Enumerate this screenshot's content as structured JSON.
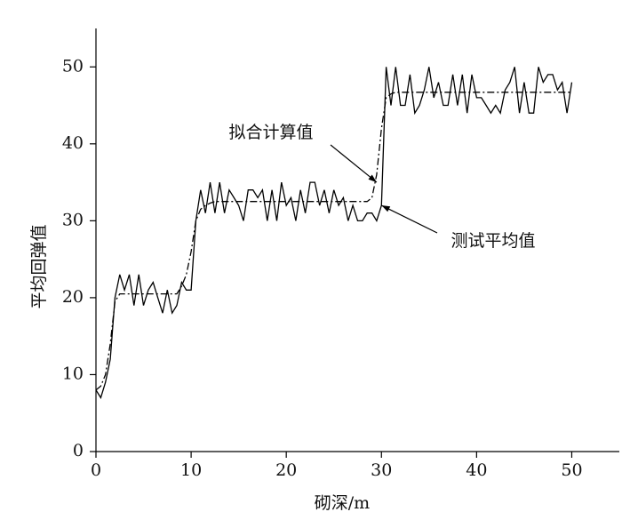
{
  "chart_data": {
    "type": "line",
    "xlabel": "砌深/m",
    "ylabel": "平均回弹值",
    "x": [
      0,
      0.5,
      1,
      1.5,
      2,
      2.5,
      3,
      3.5,
      4,
      4.5,
      5,
      5.5,
      6,
      6.5,
      7,
      7.5,
      8,
      8.5,
      9,
      9.5,
      10,
      10.5,
      11,
      11.5,
      12,
      12.5,
      13,
      13.5,
      14,
      14.5,
      15,
      15.5,
      16,
      16.5,
      17,
      17.5,
      18,
      18.5,
      19,
      19.5,
      20,
      20.5,
      21,
      21.5,
      22,
      22.5,
      23,
      23.5,
      24,
      24.5,
      25,
      25.5,
      26,
      26.5,
      27,
      27.5,
      28,
      28.5,
      29,
      29.5,
      30,
      30.5,
      31,
      31.5,
      32,
      32.5,
      33,
      33.5,
      34,
      34.5,
      35,
      35.5,
      36,
      36.5,
      37,
      37.5,
      38,
      38.5,
      39,
      39.5,
      40,
      40.5,
      41,
      41.5,
      42,
      42.5,
      43,
      43.5,
      44,
      44.5,
      45,
      45.5,
      46,
      46.5,
      47,
      47.5,
      48,
      48.5,
      49,
      49.5,
      50
    ],
    "series": [
      {
        "name": "测试平均值",
        "color": "#000000",
        "dash": "solid",
        "values": [
          8,
          7,
          9,
          12,
          20,
          23,
          21,
          23,
          19,
          23,
          19,
          21,
          22,
          20,
          18,
          21,
          18,
          19,
          22,
          21,
          21,
          30,
          34,
          31,
          35,
          31,
          35,
          31,
          34,
          33,
          32,
          30,
          34,
          34,
          33,
          34,
          30,
          34,
          30,
          35,
          32,
          33,
          30,
          34,
          31,
          35,
          35,
          32,
          34,
          31,
          34,
          32,
          33,
          30,
          32,
          30,
          30,
          31,
          31,
          30,
          32,
          50,
          45,
          50,
          45,
          45,
          49,
          44,
          45,
          47,
          50,
          46,
          48,
          45,
          45,
          49,
          45,
          49,
          44,
          49,
          46,
          46,
          45,
          44,
          45,
          44,
          47,
          48,
          50,
          44,
          48,
          44,
          44,
          50,
          48,
          49,
          49,
          47,
          48,
          44,
          48
        ]
      },
      {
        "name": "拟合计算值",
        "color": "#000000",
        "dash": "dashdot",
        "values": [
          8,
          8.5,
          10,
          14,
          19.5,
          20.5,
          20.5,
          20.5,
          20.5,
          20.5,
          20.5,
          20.5,
          20.5,
          20.5,
          20.5,
          20.5,
          20.5,
          20.5,
          21.5,
          23,
          26,
          30,
          31.5,
          32,
          32.3,
          32.5,
          32.5,
          32.5,
          32.5,
          32.5,
          32.5,
          32.5,
          32.5,
          32.5,
          32.5,
          32.5,
          32.5,
          32.5,
          32.5,
          32.5,
          32.5,
          32.5,
          32.5,
          32.5,
          32.5,
          32.5,
          32.5,
          32.5,
          32.5,
          32.5,
          32.5,
          32.5,
          32.5,
          32.5,
          32.5,
          32.5,
          32.5,
          32.5,
          33,
          36,
          42,
          46,
          46.5,
          46.7,
          46.7,
          46.7,
          46.7,
          46.7,
          46.7,
          46.7,
          46.7,
          46.7,
          46.7,
          46.7,
          46.7,
          46.7,
          46.7,
          46.7,
          46.7,
          46.7,
          46.7,
          46.7,
          46.7,
          46.7,
          46.7,
          46.7,
          46.7,
          46.7,
          46.7,
          46.7,
          46.7,
          46.7,
          46.7,
          46.7,
          46.7,
          46.7,
          46.7,
          46.7,
          46.7,
          46.7,
          46.7
        ]
      }
    ],
    "annotations": [
      {
        "text": "拟合计算值",
        "x": 29.5,
        "y": 35
      },
      {
        "text": "测试平均值",
        "x": 30,
        "y": 32
      }
    ],
    "xlim": [
      0,
      55
    ],
    "ylim": [
      0,
      55
    ],
    "xticks": [
      0,
      10,
      20,
      30,
      40,
      50
    ],
    "yticks": [
      0,
      10,
      20,
      30,
      40,
      50
    ]
  }
}
